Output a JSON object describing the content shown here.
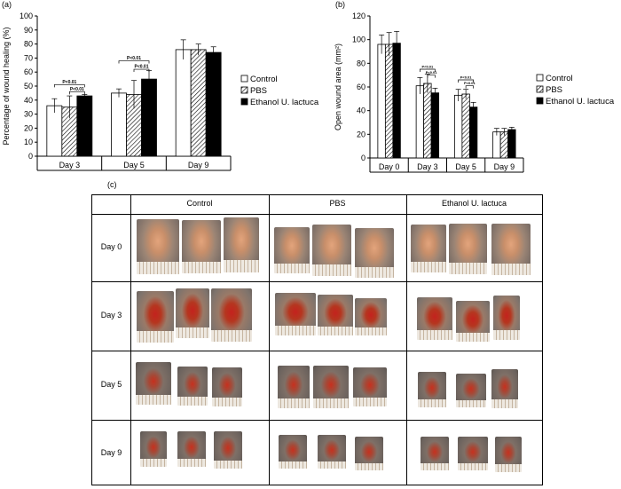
{
  "panel_labels": {
    "a": "(a)",
    "b": "(b)",
    "c": "(c)"
  },
  "chart_data": [
    {
      "type": "bar",
      "ylabel": "Percentage of wound healing (%)",
      "xlabel": "",
      "ylim": [
        0,
        100
      ],
      "yticks": [
        "0",
        "10",
        "20",
        "30",
        "40",
        "50",
        "60",
        "70",
        "80",
        "90",
        "100"
      ],
      "categories": [
        "Day 3",
        "Day 5",
        "Day 9"
      ],
      "series": [
        {
          "name": "Control",
          "values": [
            36,
            45,
            76
          ],
          "errors": [
            5,
            3,
            7
          ],
          "pattern": "white"
        },
        {
          "name": "PBS",
          "values": [
            35,
            44,
            76
          ],
          "errors": [
            8,
            10,
            4
          ],
          "pattern": "hatch"
        },
        {
          "name": "Ethanol U. lactuca",
          "values": [
            43,
            55,
            74
          ],
          "errors": [
            1,
            6,
            4
          ],
          "pattern": "black"
        }
      ],
      "legend": {
        "placement": "right",
        "entries": [
          "Control",
          "PBS",
          "Ethanol U. lactuca"
        ]
      },
      "annotations": [
        {
          "text": "P<0.01",
          "group": "Day 3",
          "from": "Control",
          "to": "Ethanol U. lactuca",
          "level": 51
        },
        {
          "text": "P<0.01",
          "group": "Day 3",
          "from": "PBS",
          "to": "Ethanol U. lactuca",
          "level": 46
        },
        {
          "text": "P<0.01",
          "group": "Day 5",
          "from": "Control",
          "to": "Ethanol U. lactuca",
          "level": 68
        },
        {
          "text": "P<0.01",
          "group": "Day 5",
          "from": "PBS",
          "to": "Ethanol U. lactuca",
          "level": 62
        }
      ]
    },
    {
      "type": "bar",
      "ylabel": "Open wound area (mm²)",
      "xlabel": "",
      "ylim": [
        0,
        120
      ],
      "yticks": [
        "0",
        "20",
        "40",
        "60",
        "80",
        "100",
        "120"
      ],
      "categories": [
        "Day 0",
        "Day 3",
        "Day 5",
        "Day 9"
      ],
      "series": [
        {
          "name": "Control",
          "values": [
            96,
            61,
            53,
            22
          ],
          "errors": [
            8,
            7,
            5,
            3
          ],
          "pattern": "white"
        },
        {
          "name": "PBS",
          "values": [
            96,
            63,
            54,
            22
          ],
          "errors": [
            10,
            8,
            4,
            3
          ],
          "pattern": "hatch"
        },
        {
          "name": "Ethanol U. lactuca",
          "values": [
            97,
            55,
            43,
            24
          ],
          "errors": [
            10,
            4,
            4,
            2
          ],
          "pattern": "black"
        }
      ],
      "legend": {
        "placement": "right",
        "entries": [
          "Control",
          "PBS",
          "Ethanol U. lactuca"
        ]
      },
      "annotations": [
        {
          "text": "P<0.01",
          "group": "Day 3",
          "from": "Control",
          "to": "Ethanol U. lactuca",
          "level": 75
        },
        {
          "text": "P<0.01",
          "group": "Day 3",
          "from": "PBS",
          "to": "Ethanol U. lactuca",
          "level": 70
        },
        {
          "text": "P<0.01",
          "group": "Day 5",
          "from": "Control",
          "to": "Ethanol U. lactuca",
          "level": 66
        },
        {
          "text": "P<0.01",
          "group": "Day 5",
          "from": "PBS",
          "to": "Ethanol U. lactuca",
          "level": 61
        }
      ]
    }
  ],
  "photo_table": {
    "columns": [
      "Control",
      "PBS",
      "Ethanol U. lactuca"
    ],
    "rows": [
      "Day 0",
      "Day 3",
      "Day 5",
      "Day 9"
    ]
  }
}
